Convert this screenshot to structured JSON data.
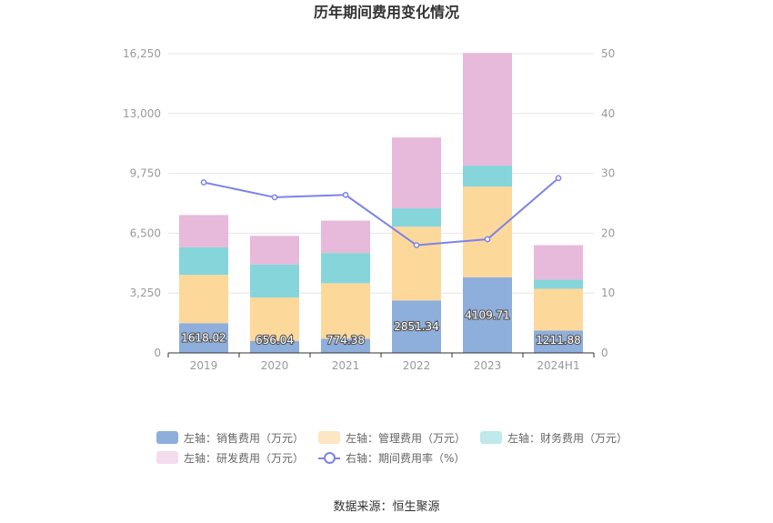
{
  "chart_data": {
    "type": "bar",
    "title": "历年期间费用变化情况",
    "categories": [
      "2019",
      "2020",
      "2021",
      "2022",
      "2023",
      "2024H1"
    ],
    "y_left": {
      "ticks": [
        "0",
        "3,250",
        "6,500",
        "9,750",
        "13,000",
        "16,250"
      ],
      "ylim": [
        0,
        16250
      ]
    },
    "y_right": {
      "ticks": [
        "0",
        "10",
        "20",
        "30",
        "40",
        "50"
      ],
      "ylim": [
        0,
        50
      ]
    },
    "series": [
      {
        "name": "左轴：销售费用（万元）",
        "stack": true,
        "axis": "left",
        "color": "#8eaedc",
        "values": [
          1618.02,
          656.04,
          774.38,
          2851.34,
          4109.71,
          1211.88
        ],
        "labels": [
          "1618.02",
          "656.04",
          "774.38",
          "2851.34",
          "4109.71",
          "1211.88"
        ]
      },
      {
        "name": "左轴：管理费用（万元）",
        "stack": true,
        "axis": "left",
        "color": "#fdd89b",
        "values": [
          2620,
          2350,
          3010,
          4000,
          4920,
          2270
        ]
      },
      {
        "name": "左轴：财务费用（万元）",
        "stack": true,
        "axis": "left",
        "color": "#86d5da",
        "values": [
          1500,
          1800,
          1640,
          1000,
          1150,
          500
        ]
      },
      {
        "name": "左轴：研发费用（万元）",
        "stack": true,
        "axis": "left",
        "color": "#e7b9da",
        "values": [
          1750,
          1550,
          1760,
          3850,
          6110,
          1870
        ]
      },
      {
        "name": "右轴：期间费用率（%）",
        "type": "line",
        "axis": "right",
        "color": "#7b83eb",
        "values": [
          28.5,
          26.0,
          26.4,
          18.0,
          19.0,
          29.2
        ]
      }
    ],
    "grid": true,
    "legend_position": "bottom"
  },
  "legend": {
    "row1": [
      {
        "label": "左轴：销售费用（万元）",
        "color": "#8eaedc"
      },
      {
        "label": "左轴：管理费用（万元）",
        "color": "#fde6c3"
      },
      {
        "label": "左轴：财务费用（万元）",
        "color": "#bfe9eb"
      }
    ],
    "row2": [
      {
        "label": "左轴：研发费用（万元）",
        "color": "#f3dcec"
      },
      {
        "label": "右轴：期间费用率（%）",
        "color": "#7b83eb"
      }
    ]
  },
  "source": "数据来源：恒生聚源"
}
